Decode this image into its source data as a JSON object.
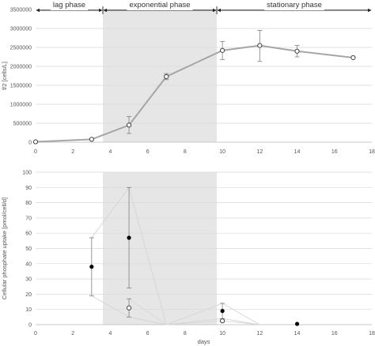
{
  "chart_data": [
    {
      "type": "line",
      "title": "",
      "xlabel": "",
      "ylabel": "f/2 [cells/L]",
      "xlim": [
        0,
        18
      ],
      "ylim": [
        0,
        3500000
      ],
      "xticks": [
        "0",
        "2",
        "4",
        "6",
        "8",
        "10",
        "12",
        "14",
        "16",
        "18"
      ],
      "yticks": [
        "0",
        "500000",
        "1000000",
        "1500000",
        "2000000",
        "2500000",
        "3000000",
        "3500000"
      ],
      "grid": "horizontal",
      "shaded_region": [
        3.6,
        9.7
      ],
      "phases": [
        {
          "label": "lag phase",
          "range": [
            0,
            3.6
          ]
        },
        {
          "label": "exponential phase",
          "range": [
            3.6,
            9.7
          ]
        },
        {
          "label": "stationary phase",
          "range": [
            9.7,
            18
          ]
        }
      ],
      "series": [
        {
          "x": [
            0,
            3,
            5,
            7,
            10,
            12,
            14,
            17
          ],
          "y": [
            10000,
            75000,
            450000,
            1730000,
            2420000,
            2550000,
            2400000,
            2230000
          ],
          "err_low": [
            10000,
            75000,
            230000,
            1650000,
            2180000,
            2130000,
            2250000,
            2230000
          ],
          "err_high": [
            10000,
            75000,
            680000,
            1810000,
            2660000,
            2950000,
            2550000,
            2230000
          ],
          "color": "#a6a6a6",
          "marker": "open-circle"
        }
      ]
    },
    {
      "type": "scatter",
      "title": "",
      "xlabel": "days",
      "ylabel": "Cellular phosphate uptake [pmol/cell/d]",
      "xlim": [
        0,
        18
      ],
      "ylim": [
        0,
        100
      ],
      "xticks": [
        "0",
        "2",
        "4",
        "6",
        "8",
        "10",
        "12",
        "14",
        "16",
        "18"
      ],
      "yticks": [
        "0",
        "10",
        "20",
        "30",
        "40",
        "50",
        "60",
        "70",
        "80",
        "90",
        "100"
      ],
      "grid": "horizontal",
      "shaded_region": [
        3.6,
        9.7
      ],
      "series": [
        {
          "x": [
            3,
            5,
            10,
            14
          ],
          "y": [
            38,
            57,
            9,
            0.5
          ],
          "err_low": [
            19,
            24,
            4,
            0.5
          ],
          "err_high": [
            57,
            90,
            14,
            0.5
          ],
          "marker": "filled-circle",
          "color": "#000000"
        },
        {
          "x": [
            5,
            10
          ],
          "y": [
            11,
            2.5
          ],
          "err_low": [
            5,
            2.5
          ],
          "err_high": [
            17,
            2.5
          ],
          "marker": "open-circle",
          "color": "#888888"
        }
      ],
      "envelope_lines": [
        {
          "x": [
            3,
            5,
            7,
            10,
            12
          ],
          "y": [
            57,
            90,
            0,
            14,
            0
          ],
          "color": "#d4d4d4"
        },
        {
          "x": [
            3,
            5,
            7,
            10,
            12
          ],
          "y": [
            19,
            5,
            0,
            4,
            0
          ],
          "color": "#d4d4d4"
        },
        {
          "x": [
            5,
            7,
            10,
            12
          ],
          "y": [
            17,
            0,
            2.5,
            0
          ],
          "color": "#d9d9d9"
        }
      ]
    }
  ]
}
